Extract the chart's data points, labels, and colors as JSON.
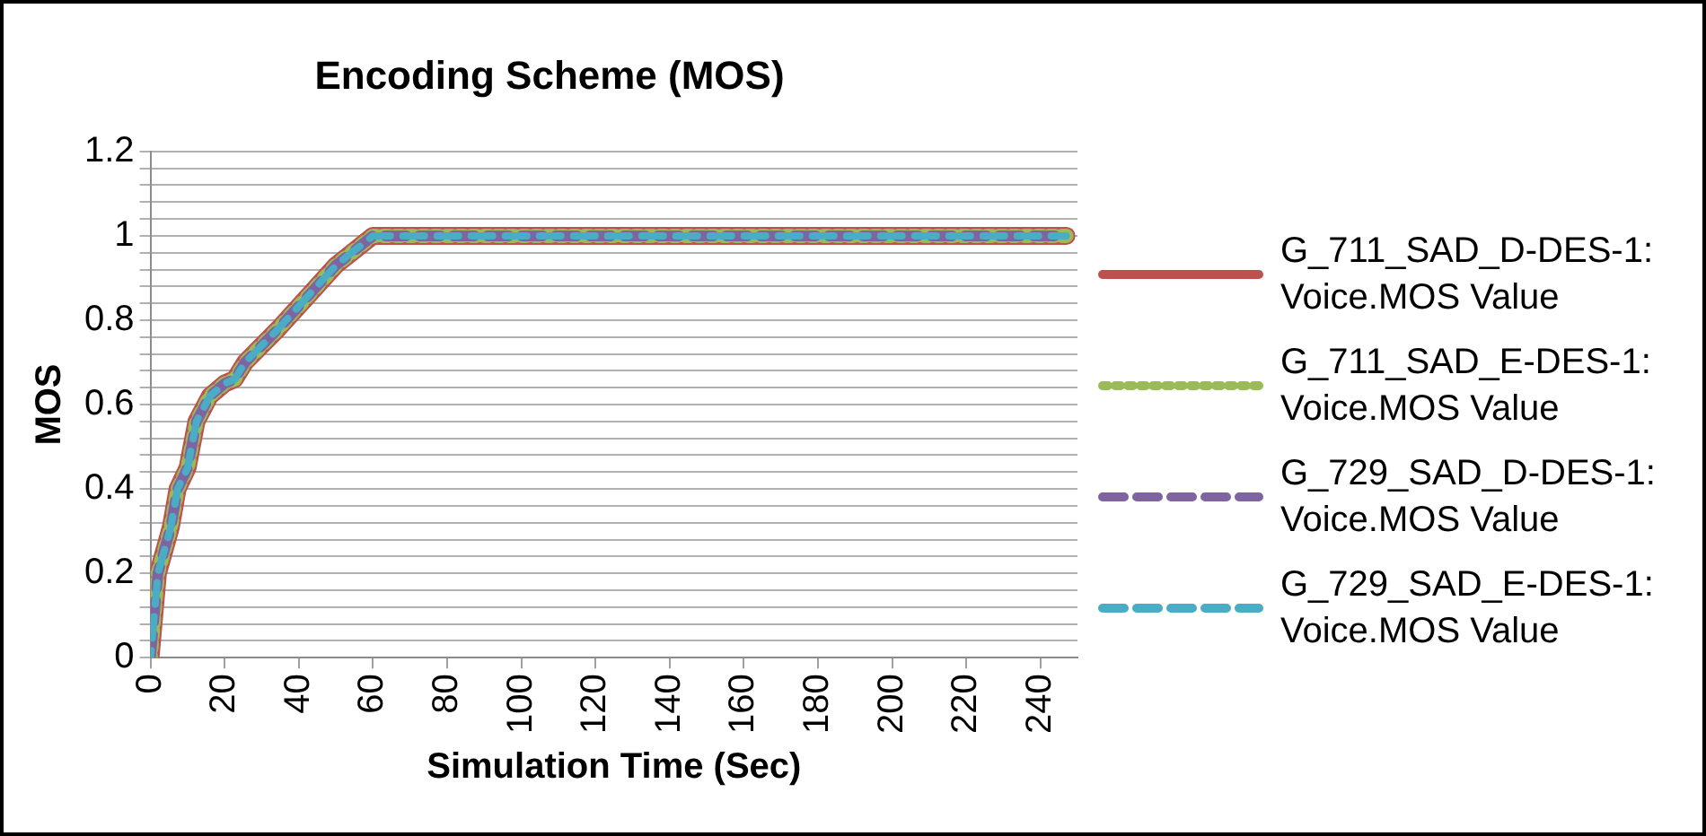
{
  "chart_data": {
    "type": "line",
    "title": "Encoding Scheme (MOS)",
    "xlabel": "Simulation Time (Sec)",
    "ylabel": "MOS",
    "x": [
      0,
      2,
      5.5,
      7.3,
      10,
      12.4,
      16,
      20,
      22.7,
      25.5,
      34.5,
      50,
      60,
      247
    ],
    "series": [
      {
        "name": "G_711_SAD_D-DES-1: Voice.MOS Value",
        "color": "#c0504d",
        "line_style": "solid",
        "values": [
          0,
          0.2,
          0.31,
          0.4,
          0.45,
          0.56,
          0.62,
          0.65,
          0.66,
          0.7,
          0.78,
          0.93,
          1,
          1
        ]
      },
      {
        "name": "G_711_SAD_E-DES-1: Voice.MOS Value",
        "color": "#9bbb59",
        "line_style": "dotted",
        "values": [
          0,
          0.2,
          0.31,
          0.4,
          0.45,
          0.56,
          0.62,
          0.65,
          0.66,
          0.7,
          0.78,
          0.93,
          1,
          1
        ]
      },
      {
        "name": "G_729_SAD_D-DES-1: Voice.MOS Value",
        "color": "#8064a2",
        "line_style": "dashed",
        "values": [
          0,
          0.2,
          0.31,
          0.4,
          0.45,
          0.56,
          0.62,
          0.65,
          0.66,
          0.7,
          0.78,
          0.93,
          1,
          1
        ]
      },
      {
        "name": "G_729_SAD_E-DES-1: Voice.MOS Value",
        "color": "#4bacc6",
        "line_style": "dashed",
        "values": [
          0,
          0.2,
          0.31,
          0.4,
          0.45,
          0.56,
          0.62,
          0.65,
          0.66,
          0.7,
          0.78,
          0.93,
          1,
          1
        ]
      }
    ],
    "xlim": [
      0,
      250
    ],
    "xticks": [
      0,
      20,
      40,
      60,
      80,
      100,
      120,
      140,
      160,
      180,
      200,
      220,
      240
    ],
    "ylim": [
      0,
      1.2
    ],
    "yticks": [
      0,
      {
        "value": 0.04,
        "label": null
      },
      {
        "value": 0.08,
        "label": null
      },
      {
        "value": 0.12,
        "label": null
      },
      {
        "value": 0.16,
        "label": null
      },
      {
        "value": 0.2,
        "label": "0.2"
      },
      {
        "value": 0.24,
        "label": null
      },
      {
        "value": 0.28,
        "label": null
      },
      {
        "value": 0.32,
        "label": null
      },
      {
        "value": 0.36,
        "label": null
      },
      {
        "value": 0.4,
        "label": "0.4"
      },
      {
        "value": 0.44,
        "label": null
      },
      {
        "value": 0.48,
        "label": null
      },
      {
        "value": 0.52,
        "label": null
      },
      {
        "value": 0.56,
        "label": null
      },
      {
        "value": 0.6,
        "label": "0.6"
      },
      {
        "value": 0.64,
        "label": null
      },
      {
        "value": 0.68,
        "label": null
      },
      {
        "value": 0.72,
        "label": null
      },
      {
        "value": 0.76,
        "label": null
      },
      {
        "value": 0.8,
        "label": "0.8"
      },
      {
        "value": 0.84,
        "label": null
      },
      {
        "value": 0.88,
        "label": null
      },
      {
        "value": 0.92,
        "label": null
      },
      {
        "value": 0.96,
        "label": null
      },
      1,
      {
        "value": 1.04,
        "label": null
      },
      {
        "value": 1.08,
        "label": null
      },
      {
        "value": 1.12,
        "label": null
      },
      {
        "value": 1.16,
        "label": null
      },
      {
        "value": 1.2,
        "label": "1.2"
      }
    ],
    "grid": "y",
    "legend": "right",
    "marker": "none"
  }
}
